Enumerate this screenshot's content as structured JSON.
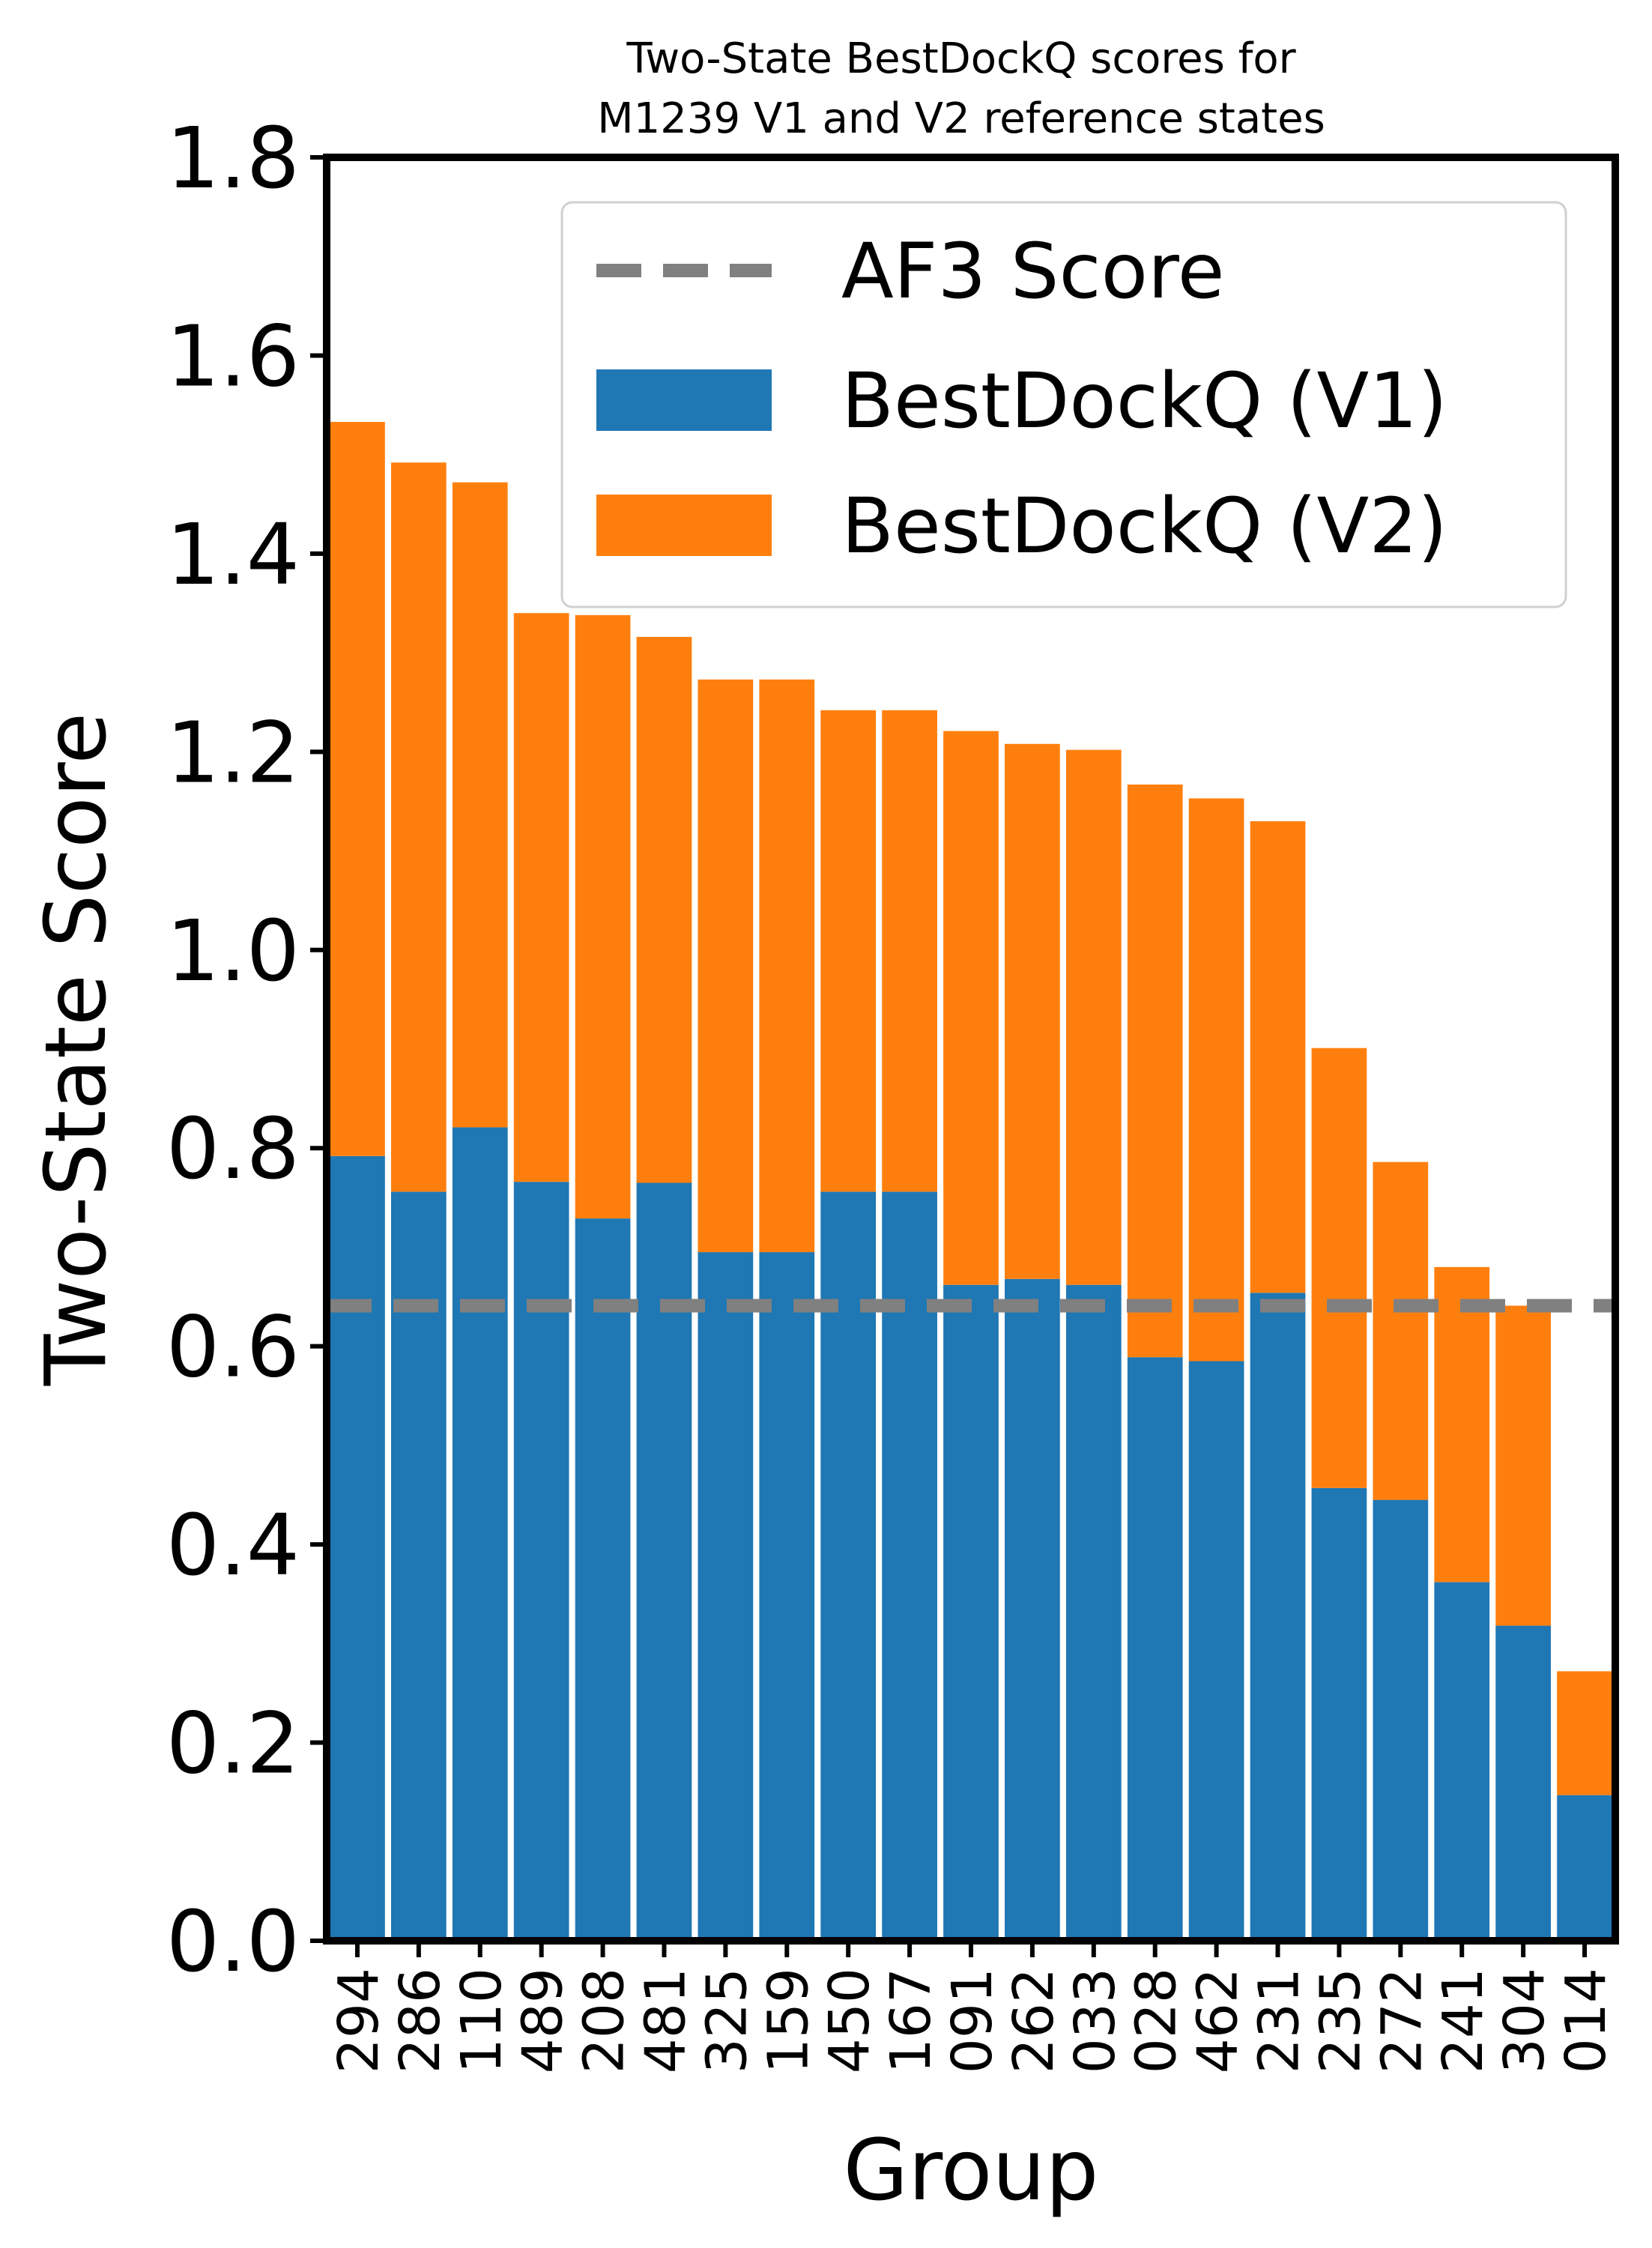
{
  "chart_data": {
    "type": "bar",
    "stacked": true,
    "title": "Two-State BestDockQ scores for\nM1239 V1 and V2 reference states",
    "title_lines": [
      "Two-State BestDockQ scores for",
      "M1239 V1 and V2 reference states"
    ],
    "xlabel": "Group",
    "ylabel": "Two-State Score",
    "ylim": [
      0,
      1.8
    ],
    "yticks": [
      "0.0",
      "0.2",
      "0.4",
      "0.6",
      "0.8",
      "1.0",
      "1.2",
      "1.4",
      "1.6",
      "1.8"
    ],
    "categories": [
      "294",
      "286",
      "110",
      "489",
      "208",
      "481",
      "325",
      "159",
      "450",
      "167",
      "091",
      "262",
      "033",
      "028",
      "462",
      "231",
      "235",
      "272",
      "241",
      "304",
      "014"
    ],
    "series": [
      {
        "name": "BestDockQ (V1)",
        "color": "#1f77b4",
        "values": [
          0.792,
          0.756,
          0.821,
          0.766,
          0.729,
          0.765,
          0.695,
          0.695,
          0.756,
          0.756,
          0.662,
          0.668,
          0.662,
          0.589,
          0.585,
          0.654,
          0.457,
          0.445,
          0.362,
          0.318,
          0.147
        ]
      },
      {
        "name": "BestDockQ (V2)",
        "color": "#ff7f0e",
        "values": [
          0.741,
          0.736,
          0.651,
          0.574,
          0.609,
          0.551,
          0.578,
          0.578,
          0.486,
          0.486,
          0.559,
          0.54,
          0.54,
          0.578,
          0.568,
          0.476,
          0.444,
          0.341,
          0.318,
          0.323,
          0.125
        ]
      }
    ],
    "reference_line": {
      "name": "AF3 Score",
      "value": 0.641,
      "color": "#808080",
      "style": "dashed"
    },
    "legend": {
      "placement": "top-right",
      "entries": [
        "AF3 Score",
        "BestDockQ (V1)",
        "BestDockQ (V2)"
      ]
    },
    "grid": false
  }
}
